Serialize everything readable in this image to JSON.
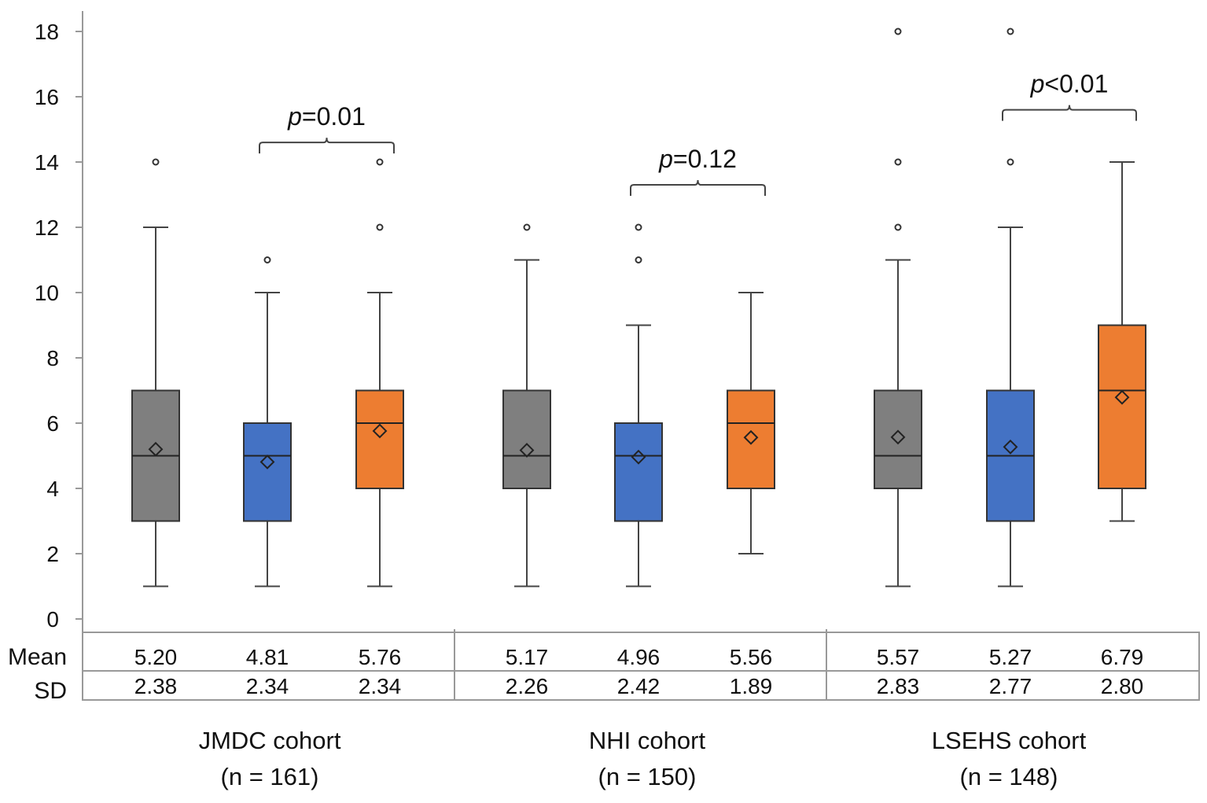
{
  "chart_data": {
    "type": "box",
    "ylim": [
      0,
      18
    ],
    "yticks": [
      0,
      2,
      4,
      6,
      8,
      10,
      12,
      14,
      16,
      18
    ],
    "grid": false,
    "colors": [
      "#7f7f7f",
      "#4472c4",
      "#ed7d31"
    ],
    "table_row_labels": [
      "Mean",
      "SD"
    ],
    "groups": [
      {
        "label": "JMDC cohort",
        "n_label": "(n = 161)",
        "p_label": "p=0.01",
        "p_prefix": "p",
        "p_suffix": "=0.01",
        "p_between": [
          1,
          2
        ],
        "p_level": 14.6,
        "boxes": [
          {
            "min": 1,
            "q1": 3,
            "median": 5,
            "q3": 7,
            "max": 12,
            "mean": 5.2,
            "sd": 2.38,
            "mean_label": "5.20",
            "sd_label": "2.38",
            "outliers": [
              14
            ]
          },
          {
            "min": 1,
            "q1": 3,
            "median": 5,
            "q3": 6,
            "max": 10,
            "mean": 4.81,
            "sd": 2.34,
            "mean_label": "4.81",
            "sd_label": "2.34",
            "outliers": [
              11
            ]
          },
          {
            "min": 1,
            "q1": 4,
            "median": 6,
            "q3": 7,
            "max": 10,
            "mean": 5.76,
            "sd": 2.34,
            "mean_label": "5.76",
            "sd_label": "2.34",
            "outliers": [
              12,
              14
            ]
          }
        ]
      },
      {
        "label": "NHI cohort",
        "n_label": "(n = 150)",
        "p_label": "p=0.12",
        "p_prefix": "p",
        "p_suffix": "=0.12",
        "p_between": [
          1,
          2
        ],
        "p_level": 13.3,
        "boxes": [
          {
            "min": 1,
            "q1": 4,
            "median": 5,
            "q3": 7,
            "max": 11,
            "mean": 5.17,
            "sd": 2.26,
            "mean_label": "5.17",
            "sd_label": "2.26",
            "outliers": [
              12
            ]
          },
          {
            "min": 1,
            "q1": 3,
            "median": 5,
            "q3": 6,
            "max": 9,
            "mean": 4.96,
            "sd": 2.42,
            "mean_label": "4.96",
            "sd_label": "2.42",
            "outliers": [
              11,
              12
            ]
          },
          {
            "min": 2,
            "q1": 4,
            "median": 6,
            "q3": 7,
            "max": 10,
            "mean": 5.56,
            "sd": 1.89,
            "mean_label": "5.56",
            "sd_label": "1.89",
            "outliers": []
          }
        ]
      },
      {
        "label": "LSEHS cohort",
        "n_label": "(n = 148)",
        "p_label": "p<0.01",
        "p_prefix": "p",
        "p_suffix": "<0.01",
        "p_between": [
          1,
          2
        ],
        "p_level": 15.6,
        "boxes": [
          {
            "min": 1,
            "q1": 4,
            "median": 5,
            "q3": 7,
            "max": 11,
            "mean": 5.57,
            "sd": 2.83,
            "mean_label": "5.57",
            "sd_label": "2.83",
            "outliers": [
              12,
              14,
              18
            ]
          },
          {
            "min": 1,
            "q1": 3,
            "median": 5,
            "q3": 7,
            "max": 12,
            "mean": 5.27,
            "sd": 2.77,
            "mean_label": "5.27",
            "sd_label": "2.77",
            "outliers": [
              14,
              18
            ]
          },
          {
            "min": 3,
            "q1": 4,
            "median": 7,
            "q3": 9,
            "max": 14,
            "mean": 6.79,
            "sd": 2.8,
            "mean_label": "6.79",
            "sd_label": "2.80",
            "outliers": []
          }
        ]
      }
    ]
  }
}
